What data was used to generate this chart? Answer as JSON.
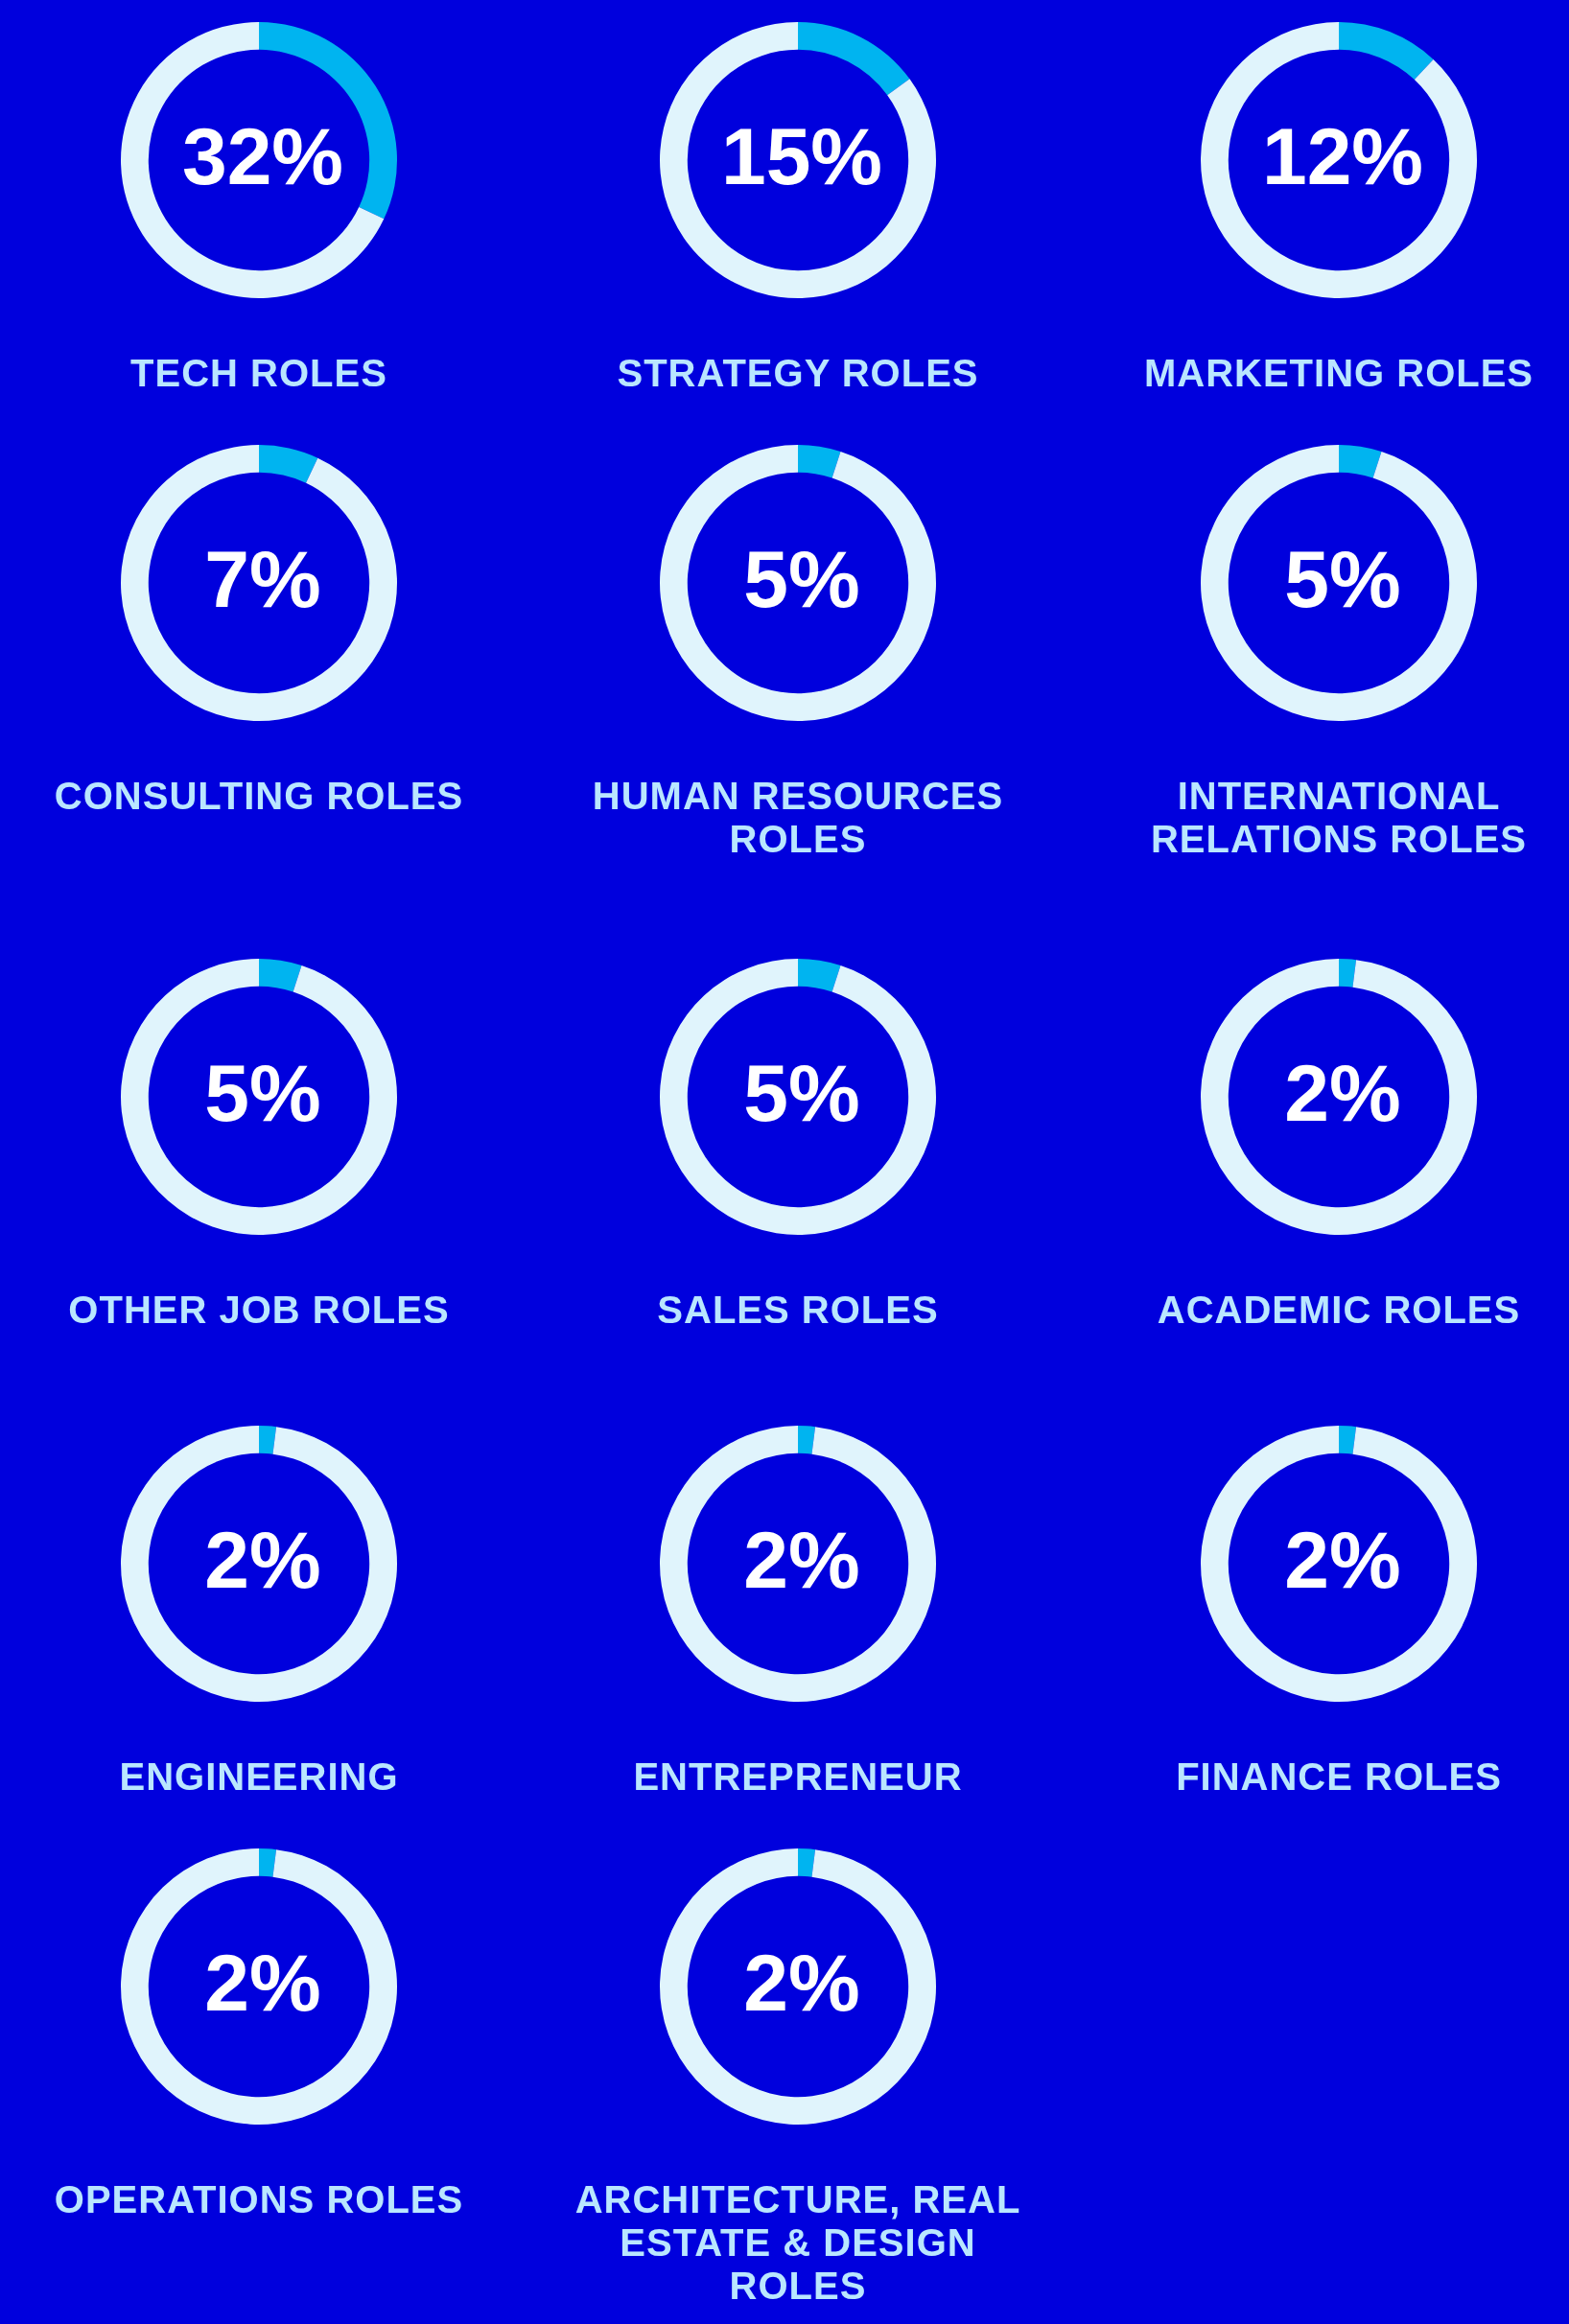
{
  "chart_data": [
    {
      "type": "donut",
      "title": "TECH ROLES",
      "categories": [
        null,
        null
      ],
      "values": [
        32,
        68
      ],
      "colors": [
        "#00b4f0",
        "#e0f4fc"
      ],
      "annotations": [
        "32%"
      ]
    },
    {
      "type": "donut",
      "title": "STRATEGY ROLES",
      "categories": [
        null,
        null
      ],
      "values": [
        15,
        85
      ],
      "colors": [
        "#00b4f0",
        "#e0f4fc"
      ],
      "annotations": [
        "15%"
      ]
    },
    {
      "type": "donut",
      "title": "MARKETING ROLES",
      "categories": [
        null,
        null
      ],
      "values": [
        12,
        88
      ],
      "colors": [
        "#00b4f0",
        "#e0f4fc"
      ],
      "annotations": [
        "12%"
      ]
    },
    {
      "type": "donut",
      "title": "CONSULTING ROLES",
      "categories": [
        null,
        null
      ],
      "values": [
        7,
        93
      ],
      "colors": [
        "#00b4f0",
        "#e0f4fc"
      ],
      "annotations": [
        "7%"
      ]
    },
    {
      "type": "donut",
      "title": "HUMAN RESOURCES ROLES",
      "categories": [
        null,
        null
      ],
      "values": [
        5,
        95
      ],
      "colors": [
        "#00b4f0",
        "#e0f4fc"
      ],
      "annotations": [
        "5%"
      ]
    },
    {
      "type": "donut",
      "title": "INTERNATIONAL RELATIONS ROLES",
      "categories": [
        null,
        null
      ],
      "values": [
        5,
        95
      ],
      "colors": [
        "#00b4f0",
        "#e0f4fc"
      ],
      "annotations": [
        "5%"
      ]
    },
    {
      "type": "donut",
      "title": "OTHER JOB ROLES",
      "categories": [
        null,
        null
      ],
      "values": [
        5,
        95
      ],
      "colors": [
        "#00b4f0",
        "#e0f4fc"
      ],
      "annotations": [
        "5%"
      ]
    },
    {
      "type": "donut",
      "title": "SALES ROLES",
      "categories": [
        null,
        null
      ],
      "values": [
        5,
        95
      ],
      "colors": [
        "#00b4f0",
        "#e0f4fc"
      ],
      "annotations": [
        "5%"
      ]
    },
    {
      "type": "donut",
      "title": "ACADEMIC ROLES",
      "categories": [
        null,
        null
      ],
      "values": [
        2,
        98
      ],
      "colors": [
        "#00b4f0",
        "#e0f4fc"
      ],
      "annotations": [
        "2%"
      ]
    },
    {
      "type": "donut",
      "title": "ENGINEERING",
      "categories": [
        null,
        null
      ],
      "values": [
        2,
        98
      ],
      "colors": [
        "#00b4f0",
        "#e0f4fc"
      ],
      "annotations": [
        "2%"
      ]
    },
    {
      "type": "donut",
      "title": "ENTREPRENEUR",
      "categories": [
        null,
        null
      ],
      "values": [
        2,
        98
      ],
      "colors": [
        "#00b4f0",
        "#e0f4fc"
      ],
      "annotations": [
        "2%"
      ]
    },
    {
      "type": "donut",
      "title": "FINANCE ROLES",
      "categories": [
        null,
        null
      ],
      "values": [
        2,
        98
      ],
      "colors": [
        "#00b4f0",
        "#e0f4fc"
      ],
      "annotations": [
        "2%"
      ]
    },
    {
      "type": "donut",
      "title": "OPERATIONS ROLES",
      "categories": [
        null,
        null
      ],
      "values": [
        2,
        98
      ],
      "colors": [
        "#00b4f0",
        "#e0f4fc"
      ],
      "annotations": [
        "2%"
      ]
    },
    {
      "type": "donut",
      "title": "ARCHITECTURE, REAL ESTATE & DESIGN ROLES",
      "categories": [
        null,
        null
      ],
      "values": [
        2,
        98
      ],
      "colors": [
        "#00b4f0",
        "#e0f4fc"
      ],
      "annotations": [
        "2%"
      ]
    }
  ]
}
